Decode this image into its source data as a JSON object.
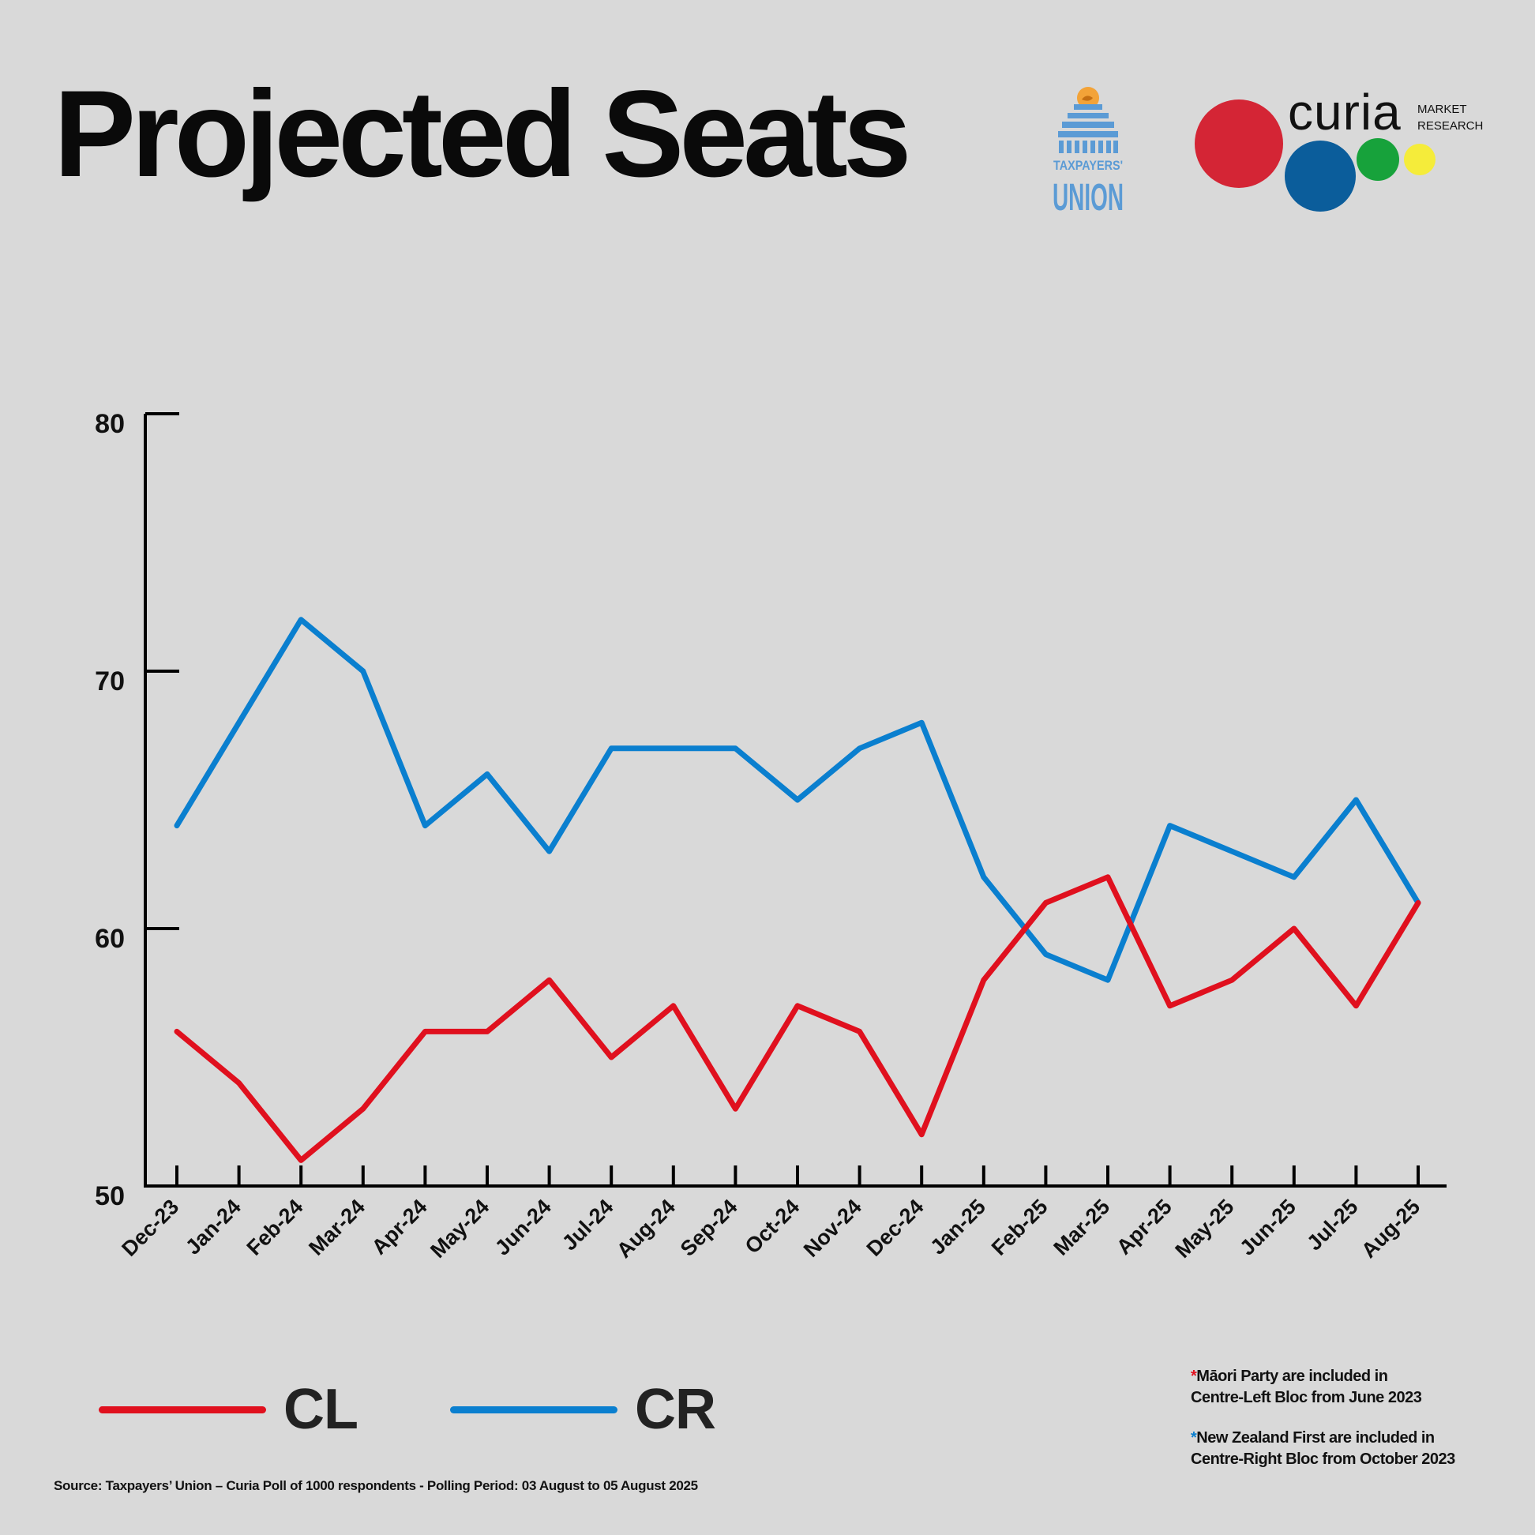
{
  "title": "Projected Seats",
  "logos": {
    "taxpayers_union": "TAXPAYERS' UNION",
    "taxpayers_union_line1": "TAXPAYERS'",
    "taxpayers_union_line2": "UNION",
    "curia_word": "curia",
    "curia_tag1": "MARKET",
    "curia_tag2": "RESEARCH"
  },
  "colors": {
    "CL": "#e0101e",
    "CR": "#0a7fcf",
    "background": "#d9d9d9",
    "tu_blue": "#5b9bd5",
    "tu_orange": "#f3a338",
    "curia_red": "#d42535",
    "curia_blue": "#0b5d9b",
    "curia_green": "#17a23b",
    "curia_yellow": "#f5ec3a"
  },
  "chart_data": {
    "type": "line",
    "title": "Projected Seats",
    "xlabel": "",
    "ylabel": "",
    "ylim": [
      50,
      80
    ],
    "yticks": [
      50,
      60,
      70,
      80
    ],
    "grid": false,
    "legend_position": "bottom-left",
    "categories": [
      "Dec-23",
      "Jan-24",
      "Feb-24",
      "Mar-24",
      "Apr-24",
      "May-24",
      "Jun-24",
      "Jul-24",
      "Aug-24",
      "Sep-24",
      "Oct-24",
      "Nov-24",
      "Dec-24",
      "Jan-25",
      "Feb-25",
      "Mar-25",
      "Apr-25",
      "May-25",
      "Jun-25",
      "Jul-25",
      "Aug-25"
    ],
    "series": [
      {
        "name": "CL",
        "values": [
          56,
          54,
          51,
          53,
          56,
          56,
          58,
          55,
          57,
          53,
          57,
          56,
          52,
          58,
          61,
          62,
          57,
          58,
          60,
          57,
          61
        ]
      },
      {
        "name": "CR",
        "values": [
          64,
          68,
          72,
          70,
          64,
          66,
          63,
          67,
          67,
          67,
          65,
          67,
          68,
          62,
          59,
          58,
          64,
          63,
          62,
          65,
          61
        ]
      }
    ]
  },
  "legend": {
    "cl_label": "CL",
    "cr_label": "CR"
  },
  "notes": {
    "note1_line1": "Māori Party are included in",
    "note1_line2": "Centre-Left Bloc from June 2023",
    "note2_line1": "New Zealand First are included in",
    "note2_line2": "Centre-Right Bloc from October 2023",
    "star": "*"
  },
  "source": "Source: Taxpayers’ Union – Curia Poll of 1000 respondents -  Polling Period: 03 August to 05 August 2025"
}
